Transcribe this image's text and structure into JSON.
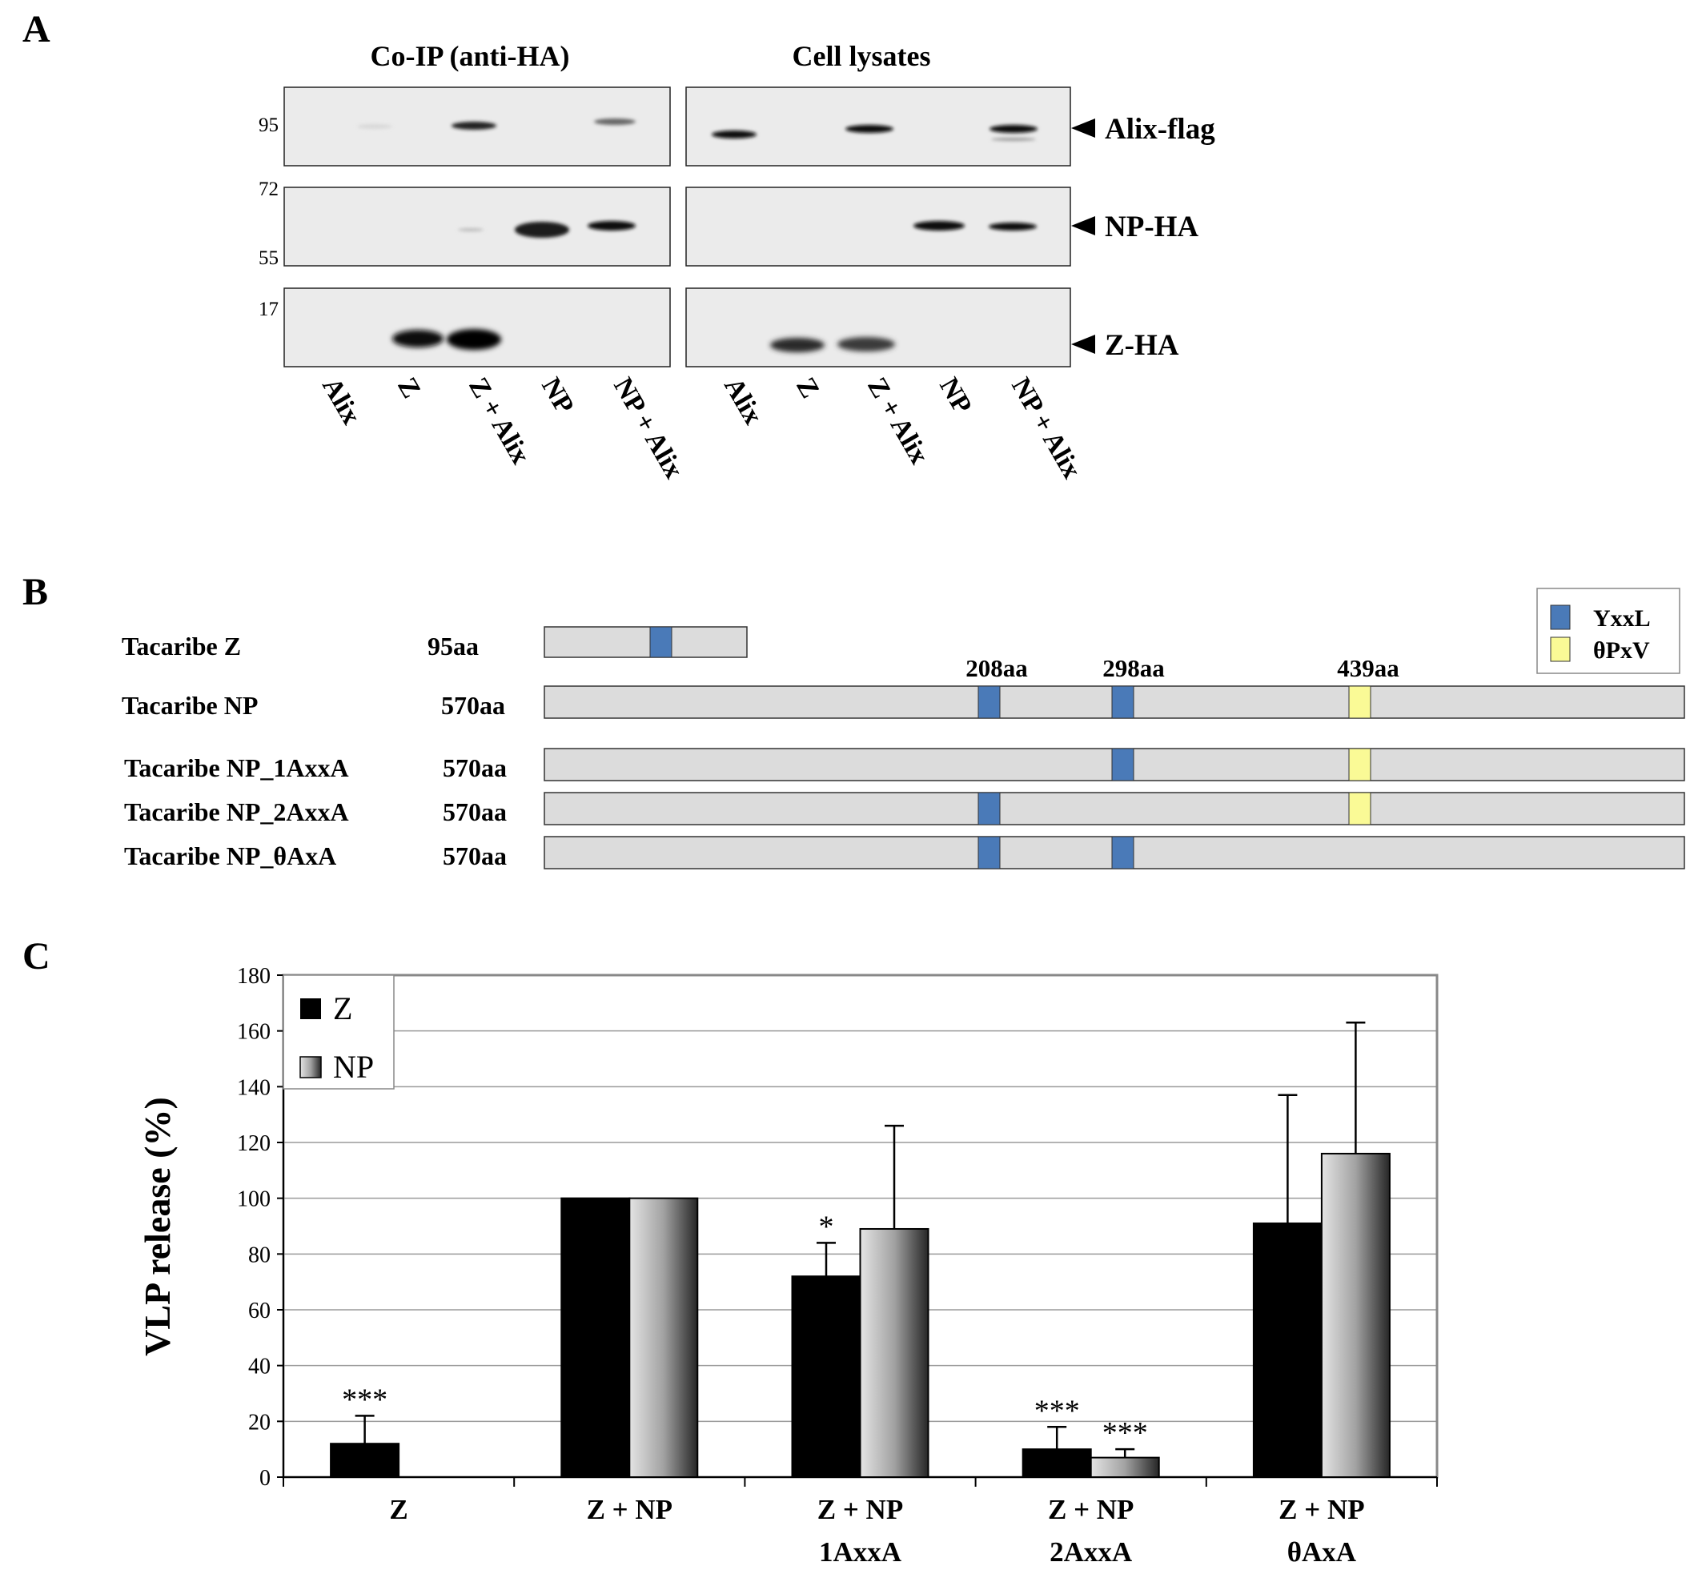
{
  "panel_a": {
    "letter": "A",
    "header_coip": "Co-IP (anti-HA)",
    "header_lysates": "Cell lysates",
    "mw_markers": [
      "95",
      "72",
      "55",
      "17"
    ],
    "band_labels": [
      "Alix-flag",
      "NP-HA",
      "Z-HA"
    ],
    "lanes": [
      "Alix",
      "Z",
      "Z + Alix",
      "NP",
      "NP + Alix"
    ]
  },
  "panel_b": {
    "letter": "B",
    "constructs": [
      {
        "name": "Tacaribe Z",
        "length": "95aa"
      },
      {
        "name": "Tacaribe NP",
        "length": "570aa"
      },
      {
        "name": "Tacaribe NP_1AxxA",
        "length": "570aa"
      },
      {
        "name": "Tacaribe NP_2AxxA",
        "length": "570aa"
      },
      {
        "name": "Tacaribe NP_θAxA",
        "length": "570aa"
      }
    ],
    "positions": [
      "208aa",
      "298aa",
      "439aa"
    ],
    "legend": [
      {
        "label": "YxxL",
        "color": "#4a7ab8"
      },
      {
        "label": "θPxV",
        "color": "#fafa96"
      }
    ]
  },
  "panel_c": {
    "letter": "C"
  },
  "chart_data": {
    "type": "bar",
    "ylabel": "VLP release (%)",
    "xlabel": "",
    "ylim": [
      0,
      180
    ],
    "yticks": [
      0,
      20,
      40,
      60,
      80,
      100,
      120,
      140,
      160,
      180
    ],
    "grid": true,
    "legend_position": "top-left",
    "categories": [
      [
        "Z"
      ],
      [
        "Z + NP"
      ],
      [
        "Z + NP",
        "1AxxA"
      ],
      [
        "Z + NP",
        "2AxxA"
      ],
      [
        "Z + NP",
        "θAxA"
      ]
    ],
    "series": [
      {
        "name": "Z",
        "color": "#000000",
        "values": [
          12,
          100,
          72,
          10,
          91
        ],
        "errors": [
          10,
          0,
          12,
          8,
          46
        ],
        "annotations": [
          "***",
          "",
          "*",
          "***",
          ""
        ]
      },
      {
        "name": "NP",
        "color": "#a8a8a8",
        "values": [
          0,
          100,
          89,
          7,
          116
        ],
        "errors": [
          0,
          0,
          37,
          3,
          47
        ],
        "annotations": [
          "",
          "",
          "",
          "***",
          ""
        ]
      }
    ]
  }
}
